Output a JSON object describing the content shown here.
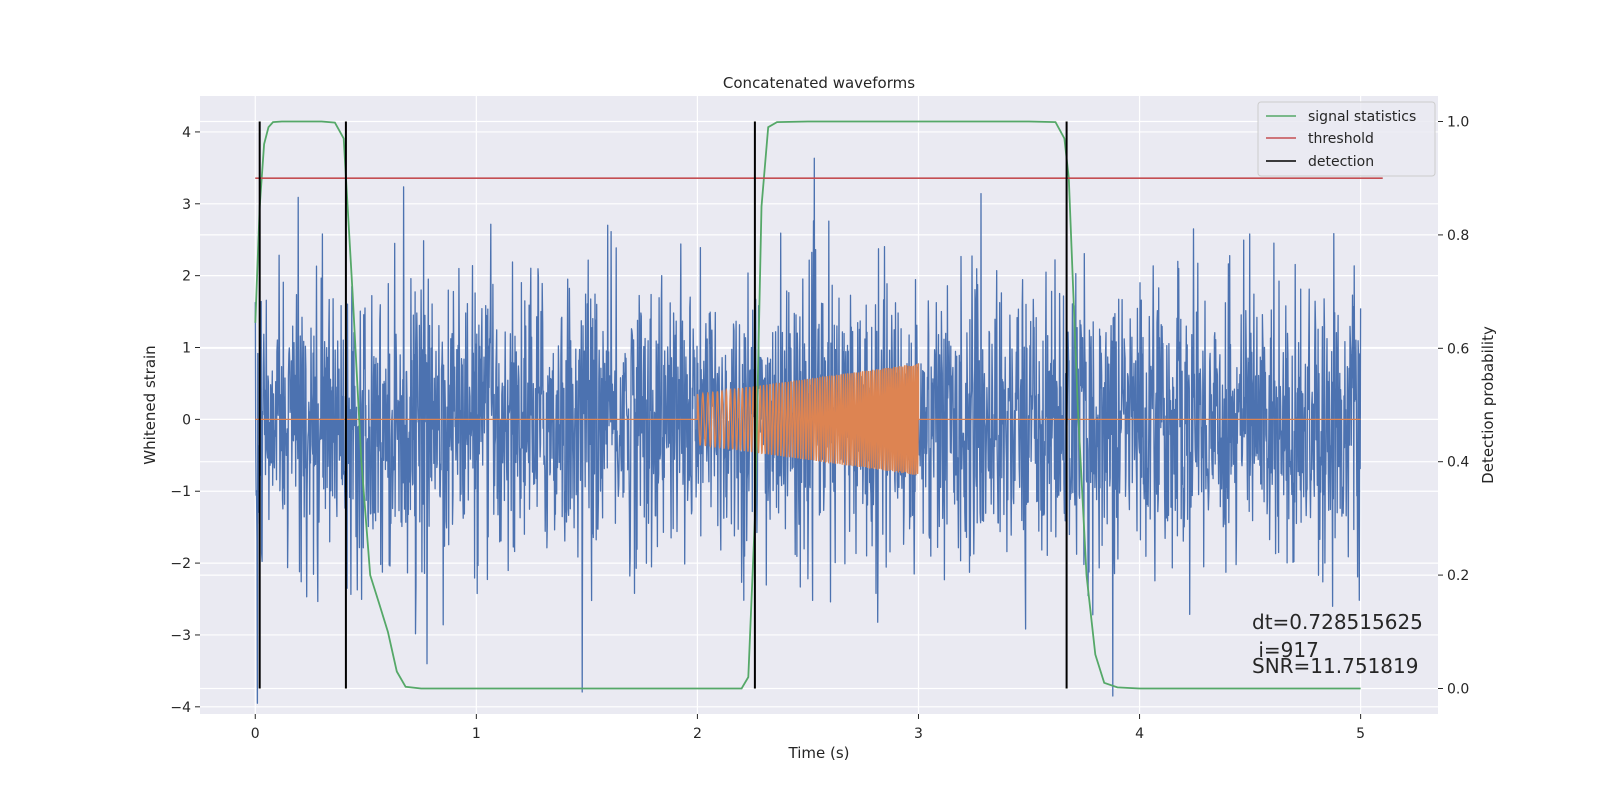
{
  "chart_data": {
    "type": "line",
    "title": "Concatenated waveforms",
    "xlabel": "Time (s)",
    "ylabel": "Whitened strain",
    "y2label": "Detection probability",
    "xlim": [
      -0.25,
      5.35
    ],
    "ylim": [
      -4.1,
      4.5
    ],
    "y2lim": [
      -0.045,
      1.045
    ],
    "xticks": [
      0,
      1,
      2,
      3,
      4,
      5
    ],
    "yticks": [
      -4,
      -3,
      -2,
      -1,
      0,
      1,
      2,
      3,
      4
    ],
    "y2ticks": [
      0.0,
      0.2,
      0.4,
      0.6,
      0.8,
      1.0
    ],
    "xtick_labels": [
      "0",
      "1",
      "2",
      "3",
      "4",
      "5"
    ],
    "ytick_labels": [
      "−4",
      "−3",
      "−2",
      "−1",
      "0",
      "1",
      "2",
      "3",
      "4"
    ],
    "y2tick_labels": [
      "0.0",
      "0.2",
      "0.4",
      "0.6",
      "0.8",
      "1.0"
    ],
    "grid": true,
    "legend_position": "top-right",
    "colors": {
      "background": "#eaeaf2",
      "strain": "#4c72b0",
      "injection": "#dd8452",
      "signal_statistics": "#55a868",
      "threshold": "#c44e52",
      "detection": "#000000"
    },
    "series": [
      {
        "name": "whitened strain",
        "axis": "left",
        "kind": "noise",
        "x_range": [
          0,
          5
        ],
        "typical_amplitude": 1.0,
        "peak_amplitude": 4.1
      },
      {
        "name": "injected waveform",
        "axis": "left",
        "kind": "chirp",
        "x_range": [
          2.0,
          3.0
        ],
        "amplitude_start": 0.35,
        "amplitude_end": 0.78,
        "baseline": 0
      },
      {
        "name": "signal statistics",
        "axis": "right",
        "x": [
          0.0,
          0.02,
          0.04,
          0.06,
          0.08,
          0.12,
          0.2,
          0.3,
          0.36,
          0.4,
          0.44,
          0.48,
          0.52,
          0.56,
          0.6,
          0.64,
          0.68,
          0.75,
          1.0,
          1.5,
          2.0,
          2.2,
          2.23,
          2.26,
          2.29,
          2.32,
          2.36,
          2.5,
          3.0,
          3.5,
          3.62,
          3.66,
          3.68,
          3.72,
          3.76,
          3.8,
          3.84,
          3.9,
          4.0,
          4.5,
          5.0
        ],
        "y": [
          0.645,
          0.85,
          0.96,
          0.99,
          0.999,
          1.0,
          1.0,
          1.0,
          0.998,
          0.97,
          0.7,
          0.4,
          0.2,
          0.15,
          0.1,
          0.03,
          0.003,
          0.0,
          0.0,
          0.0,
          0.0,
          0.0,
          0.02,
          0.3,
          0.85,
          0.99,
          0.999,
          1.0,
          1.0,
          1.0,
          0.999,
          0.97,
          0.9,
          0.5,
          0.2,
          0.06,
          0.01,
          0.002,
          0.0,
          0.0,
          0.0
        ]
      },
      {
        "name": "threshold",
        "axis": "right",
        "x": [
          0.0,
          5.1
        ],
        "y": [
          0.9,
          0.9
        ]
      },
      {
        "name": "detection",
        "axis": "right",
        "kind": "vlines",
        "x": [
          0.02,
          0.41,
          2.26,
          3.67
        ],
        "ymin": 0.0,
        "ymax": 1.0
      }
    ],
    "legend": [
      "signal statistics",
      "threshold",
      "detection"
    ],
    "annotations": [
      "dt=0.728515625",
      " i=917",
      "SNR=11.751819"
    ]
  }
}
